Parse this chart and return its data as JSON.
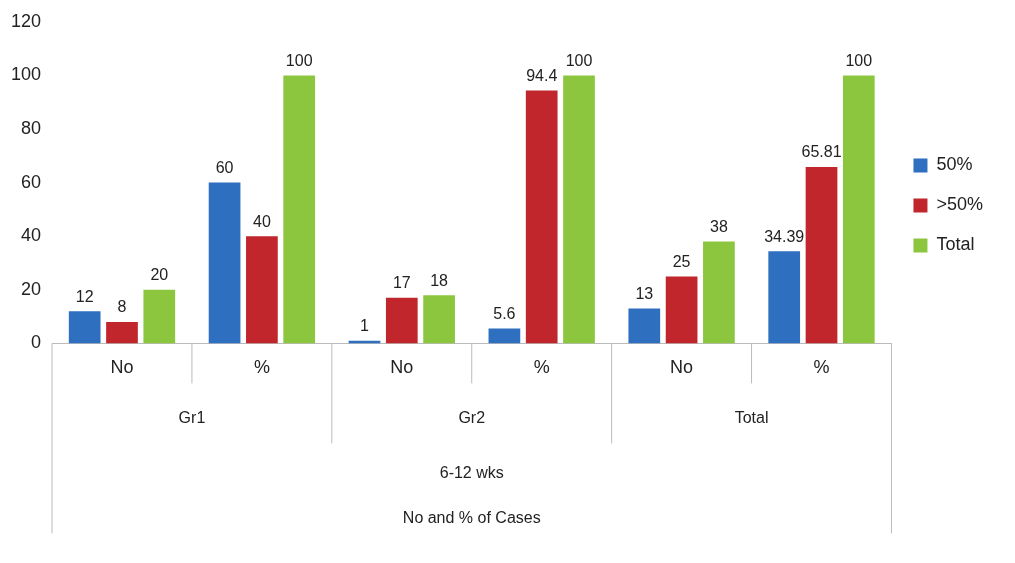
{
  "chart_data": {
    "type": "bar",
    "categories": [
      "No",
      "%",
      "No",
      "%",
      "No",
      "%"
    ],
    "series": [
      {
        "name": "50%",
        "color": "#2e6fc0",
        "values": [
          12,
          60,
          1,
          5.6,
          13,
          34.39
        ]
      },
      {
        "name": ">50%",
        "color": "#c0262b",
        "values": [
          8,
          40,
          17,
          94.4,
          25,
          65.81
        ]
      },
      {
        "name": "Total",
        "color": "#8cc63f",
        "values": [
          20,
          100,
          18,
          100,
          38,
          100
        ]
      }
    ],
    "annotations": [
      "Gr1",
      "Gr2",
      "Total",
      "6-12 wks",
      "No and % of Cases"
    ],
    "ylim": [
      0,
      120
    ],
    "yticks": [
      0,
      20,
      40,
      60,
      80,
      100,
      120
    ],
    "grid": false,
    "legend": "right",
    "data_labels": true
  }
}
